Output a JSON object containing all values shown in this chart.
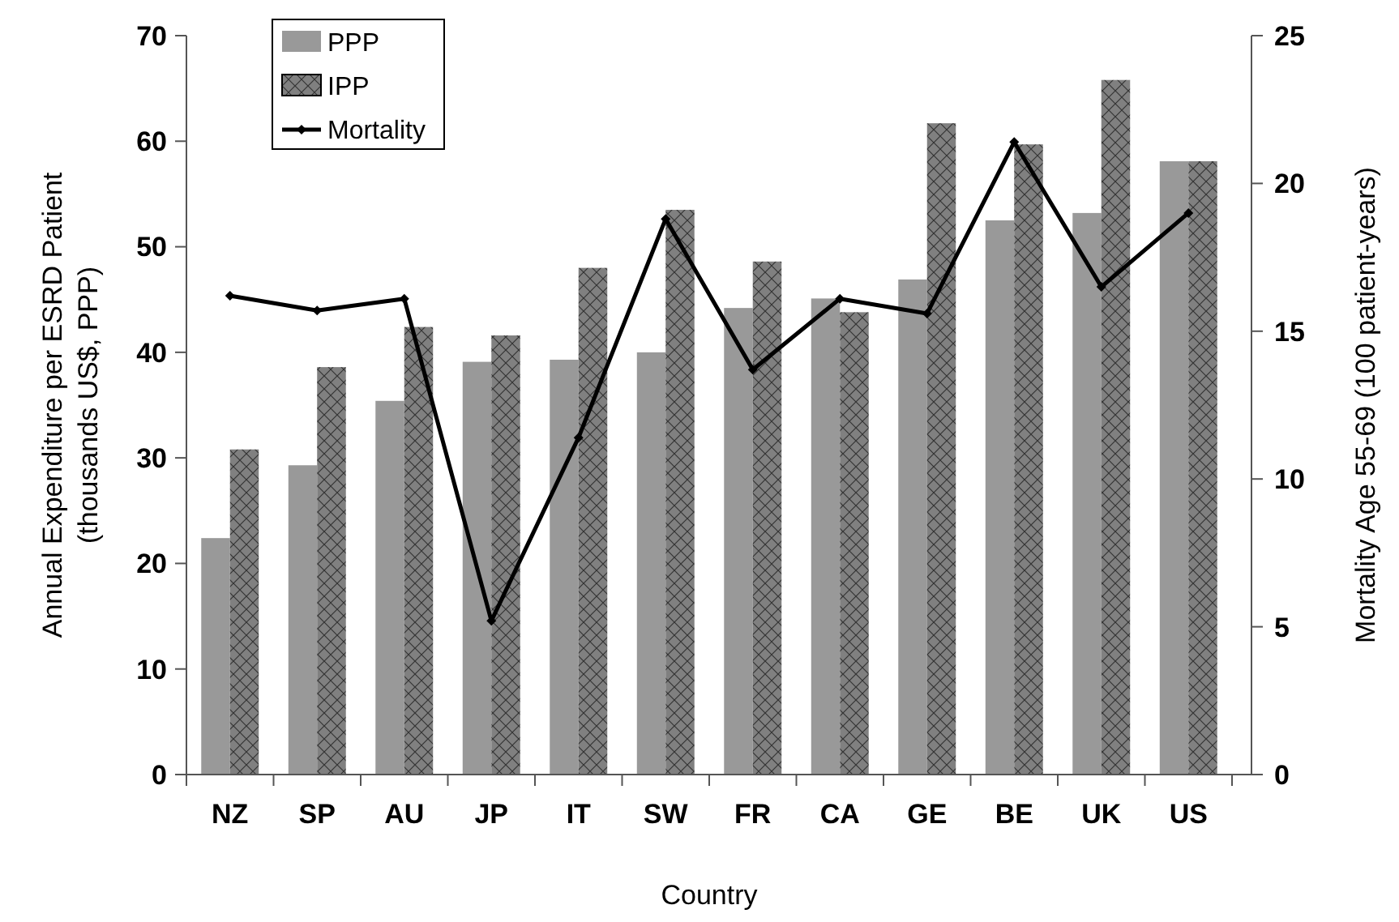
{
  "chart_data": {
    "type": "bar",
    "xlabel": "Country",
    "ylabel": "Annual Expenditure per ESRD Patient (thousands US$,  PPP)",
    "y2label": "Mortality Age 55-69 (100 patient-years)",
    "categories": [
      "NZ",
      "SP",
      "AU",
      "JP",
      "IT",
      "SW",
      "FR",
      "CA",
      "GE",
      "BE",
      "UK",
      "US"
    ],
    "series": [
      {
        "name": "PPP",
        "color": "#999999",
        "values": [
          22.4,
          29.3,
          35.4,
          39.1,
          39.3,
          40.0,
          44.2,
          45.1,
          46.9,
          52.5,
          53.2,
          58.1
        ]
      },
      {
        "name": "IPP",
        "color": "#808080",
        "values": [
          30.8,
          38.6,
          42.4,
          41.6,
          48.0,
          53.5,
          48.6,
          43.8,
          61.7,
          59.7,
          65.8,
          58.1
        ]
      },
      {
        "name": "Mortality",
        "type": "line",
        "axis": "y2",
        "color": "#000000",
        "marker": "diamond",
        "values": [
          16.2,
          15.7,
          16.1,
          5.2,
          11.4,
          18.8,
          13.7,
          16.1,
          15.6,
          21.4,
          16.5,
          19.0
        ]
      }
    ],
    "ylim": [
      0,
      70
    ],
    "yticks": [
      0,
      10,
      20,
      30,
      40,
      50,
      60,
      70
    ],
    "y2lim": [
      0,
      25
    ],
    "y2ticks": [
      0,
      5,
      10,
      15,
      20,
      25
    ],
    "grid": false,
    "legend": "top left"
  }
}
